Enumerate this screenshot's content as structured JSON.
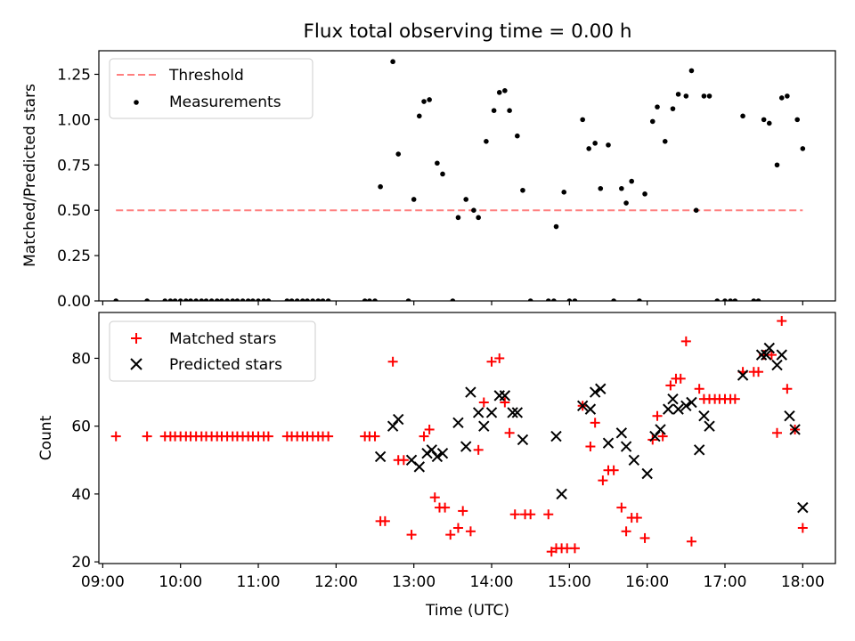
{
  "title": "Flux total observing time = 0.00 h",
  "xlabel": "Time (UTC)",
  "x_ticks": [
    "09:00",
    "10:00",
    "11:00",
    "12:00",
    "13:00",
    "14:00",
    "15:00",
    "16:00",
    "17:00",
    "18:00"
  ],
  "x_tick_hours": [
    9,
    10,
    11,
    12,
    13,
    14,
    15,
    16,
    17,
    18
  ],
  "xlim_hours": [
    8.95,
    18.42
  ],
  "chart_data": [
    {
      "type": "scatter",
      "ylabel": "Matched/Predicted stars",
      "ylim": [
        0,
        1.38
      ],
      "y_ticks": [
        "0.00",
        "0.25",
        "0.50",
        "0.75",
        "1.00",
        "1.25"
      ],
      "y_tick_values": [
        0,
        0.25,
        0.5,
        0.75,
        1.0,
        1.25
      ],
      "legend_position": "top-left",
      "threshold": {
        "name": "Threshold",
        "value": 0.5,
        "x_range": [
          9.17,
          18.0
        ],
        "color": "#ff7f7f"
      },
      "series": [
        {
          "name": "Measurements",
          "color": "#000000",
          "x": [
            9.17,
            9.57,
            9.8,
            9.87,
            9.93,
            10.0,
            10.07,
            10.13,
            10.2,
            10.27,
            10.33,
            10.4,
            10.47,
            10.53,
            10.6,
            10.67,
            10.73,
            10.8,
            10.87,
            10.93,
            11.0,
            11.07,
            11.13,
            11.37,
            11.43,
            11.5,
            11.57,
            11.63,
            11.7,
            11.77,
            11.83,
            11.9,
            12.37,
            12.43,
            12.5,
            12.57,
            12.73,
            12.8,
            12.93,
            13.0,
            13.07,
            13.13,
            13.2,
            13.3,
            13.37,
            13.5,
            13.57,
            13.67,
            13.77,
            13.83,
            13.93,
            14.03,
            14.1,
            14.17,
            14.23,
            14.33,
            14.4,
            14.5,
            14.73,
            14.8,
            14.83,
            14.93,
            15.0,
            15.07,
            15.17,
            15.25,
            15.33,
            15.4,
            15.5,
            15.57,
            15.67,
            15.73,
            15.8,
            15.9,
            15.97,
            16.07,
            16.13,
            16.23,
            16.33,
            16.4,
            16.5,
            16.57,
            16.63,
            16.73,
            16.8,
            16.9,
            17.0,
            17.07,
            17.13,
            17.23,
            17.37,
            17.43,
            17.5,
            17.57,
            17.67,
            17.73,
            17.8,
            17.93,
            18.0
          ],
          "y": [
            0.0,
            0.0,
            0.0,
            0.0,
            0.0,
            0.0,
            0.0,
            0.0,
            0.0,
            0.0,
            0.0,
            0.0,
            0.0,
            0.0,
            0.0,
            0.0,
            0.0,
            0.0,
            0.0,
            0.0,
            0.0,
            0.0,
            0.0,
            0.0,
            0.0,
            0.0,
            0.0,
            0.0,
            0.0,
            0.0,
            0.0,
            0.0,
            0.0,
            0.0,
            0.0,
            0.63,
            1.32,
            0.81,
            0.0,
            0.56,
            1.02,
            1.1,
            1.11,
            0.76,
            0.7,
            0.0,
            0.46,
            0.56,
            0.5,
            0.46,
            0.88,
            1.05,
            1.15,
            1.16,
            1.05,
            0.91,
            0.61,
            0.0,
            0.0,
            0.0,
            0.41,
            0.6,
            0.0,
            0.0,
            1.0,
            0.84,
            0.87,
            0.62,
            0.86,
            0.0,
            0.62,
            0.54,
            0.66,
            0.0,
            0.59,
            0.99,
            1.07,
            0.88,
            1.06,
            1.14,
            1.13,
            1.27,
            0.5,
            1.13,
            1.13,
            0.0,
            0.0,
            0.0,
            0.0,
            1.02,
            0.0,
            0.0,
            1.0,
            0.98,
            0.75,
            1.12,
            1.13,
            1.0,
            0.84
          ]
        }
      ]
    },
    {
      "type": "scatter",
      "ylabel": "Count",
      "ylim": [
        19.5,
        93.5
      ],
      "y_ticks": [
        "20",
        "40",
        "60",
        "80"
      ],
      "y_tick_values": [
        20,
        40,
        60,
        80
      ],
      "legend_position": "top-left",
      "series": [
        {
          "name": "Matched stars",
          "marker": "plus",
          "color": "#ff0000",
          "x": [
            9.17,
            9.57,
            9.8,
            9.87,
            9.93,
            10.0,
            10.07,
            10.13,
            10.2,
            10.27,
            10.33,
            10.4,
            10.47,
            10.53,
            10.6,
            10.67,
            10.73,
            10.8,
            10.87,
            10.93,
            11.0,
            11.07,
            11.13,
            11.37,
            11.43,
            11.5,
            11.57,
            11.63,
            11.7,
            11.77,
            11.83,
            11.9,
            12.37,
            12.43,
            12.5,
            12.57,
            12.63,
            12.73,
            12.8,
            12.87,
            12.97,
            13.13,
            13.2,
            13.27,
            13.33,
            13.4,
            13.47,
            13.57,
            13.63,
            13.73,
            13.83,
            13.9,
            14.0,
            14.1,
            14.17,
            14.23,
            14.3,
            14.43,
            14.5,
            14.73,
            14.77,
            14.83,
            14.9,
            14.97,
            15.07,
            15.17,
            15.27,
            15.33,
            15.43,
            15.5,
            15.57,
            15.67,
            15.73,
            15.8,
            15.87,
            15.97,
            16.07,
            16.13,
            16.2,
            16.3,
            16.37,
            16.43,
            16.5,
            16.57,
            16.67,
            16.73,
            16.8,
            16.87,
            16.93,
            17.0,
            17.07,
            17.13,
            17.23,
            17.37,
            17.43,
            17.5,
            17.6,
            17.67,
            17.73,
            17.8,
            17.9,
            18.0
          ],
          "y": [
            57,
            57,
            57,
            57,
            57,
            57,
            57,
            57,
            57,
            57,
            57,
            57,
            57,
            57,
            57,
            57,
            57,
            57,
            57,
            57,
            57,
            57,
            57,
            57,
            57,
            57,
            57,
            57,
            57,
            57,
            57,
            57,
            57,
            57,
            57,
            32,
            32,
            79,
            50,
            50,
            28,
            57,
            59,
            39,
            36,
            36,
            28,
            30,
            35,
            29,
            53,
            67,
            79,
            80,
            67,
            58,
            34,
            34,
            34,
            34,
            23,
            24,
            24,
            24,
            24,
            66,
            54,
            61,
            44,
            47,
            47,
            36,
            29,
            33,
            33,
            27,
            56,
            63,
            57,
            72,
            74,
            74,
            85,
            26,
            71,
            68,
            68,
            68,
            68,
            68,
            68,
            68,
            76,
            76,
            76,
            81,
            81,
            58,
            91,
            71,
            59,
            30
          ]
        },
        {
          "name": "Predicted stars",
          "marker": "x",
          "color": "#000000",
          "x": [
            12.57,
            12.73,
            12.8,
            12.97,
            13.07,
            13.17,
            13.23,
            13.3,
            13.37,
            13.57,
            13.67,
            13.73,
            13.83,
            13.9,
            14.0,
            14.1,
            14.17,
            14.27,
            14.33,
            14.4,
            14.83,
            14.9,
            15.17,
            15.27,
            15.33,
            15.4,
            15.5,
            15.67,
            15.73,
            15.83,
            16.0,
            16.1,
            16.17,
            16.27,
            16.33,
            16.4,
            16.5,
            16.57,
            16.67,
            16.73,
            16.8,
            17.23,
            17.47,
            17.53,
            17.57,
            17.67,
            17.73,
            17.83,
            17.9,
            18.0
          ],
          "y": [
            51,
            60,
            62,
            50,
            48,
            52,
            53,
            51,
            52,
            61,
            54,
            70,
            64,
            60,
            64,
            69,
            69,
            64,
            64,
            56,
            57,
            40,
            66,
            65,
            70,
            71,
            55,
            58,
            54,
            50,
            46,
            57,
            59,
            65,
            68,
            65,
            66,
            67,
            53,
            63,
            60,
            75,
            81,
            81,
            83,
            78,
            81,
            63,
            59,
            36
          ]
        }
      ]
    }
  ]
}
